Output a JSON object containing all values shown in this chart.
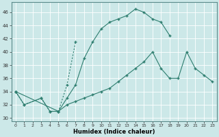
{
  "xlabel": "Humidex (Indice chaleur)",
  "bg_color": "#cce8e8",
  "grid_color": "#ffffff",
  "line_color": "#2d7d6e",
  "xlim": [
    -0.5,
    23.5
  ],
  "ylim": [
    29.5,
    47.5
  ],
  "xticks": [
    0,
    1,
    2,
    3,
    4,
    5,
    6,
    7,
    8,
    9,
    10,
    11,
    12,
    13,
    14,
    15,
    16,
    17,
    18,
    19,
    20,
    21,
    22,
    23
  ],
  "yticks": [
    30,
    32,
    34,
    36,
    38,
    40,
    42,
    44,
    46
  ],
  "line1_x": [
    0,
    1,
    3,
    4,
    5,
    6,
    7
  ],
  "line1_y": [
    34,
    32,
    33,
    31,
    31,
    35,
    41.5
  ],
  "line2_x": [
    0,
    1,
    3,
    4,
    5,
    6,
    7,
    8,
    9,
    10,
    11,
    12,
    13,
    14,
    15,
    16,
    17,
    18
  ],
  "line2_y": [
    34,
    32,
    33,
    31,
    31,
    33,
    35,
    39,
    41.5,
    43.5,
    44.5,
    45,
    45.5,
    46.5,
    46,
    45,
    44.5,
    42.5
  ],
  "line3_x": [
    0,
    5,
    6,
    7,
    8,
    9,
    10,
    11,
    12,
    13,
    14,
    15,
    16,
    17,
    18,
    19,
    20,
    21,
    22,
    23
  ],
  "line3_y": [
    34,
    31,
    32,
    32.5,
    33,
    33.5,
    34,
    34.5,
    35.5,
    36.5,
    37.5,
    38.5,
    40,
    37.5,
    36,
    36,
    40,
    37.5,
    36.5,
    35.5
  ]
}
